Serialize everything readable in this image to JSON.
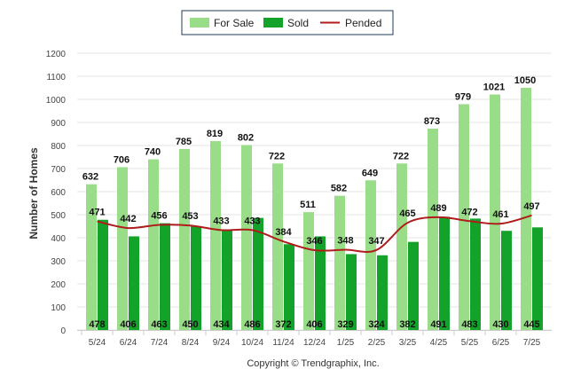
{
  "chart_data": {
    "type": "bar",
    "categories": [
      "5/24",
      "6/24",
      "7/24",
      "8/24",
      "9/24",
      "10/24",
      "11/24",
      "12/24",
      "1/25",
      "2/25",
      "3/25",
      "4/25",
      "5/25",
      "6/25",
      "7/25"
    ],
    "series": [
      {
        "name": "For Sale",
        "type": "bar",
        "color": "#99dd88",
        "values": [
          632,
          706,
          740,
          785,
          819,
          802,
          722,
          511,
          582,
          649,
          722,
          873,
          979,
          1021,
          1050
        ]
      },
      {
        "name": "Sold",
        "type": "bar",
        "color": "#14a32a",
        "values": [
          478,
          406,
          463,
          450,
          434,
          486,
          372,
          406,
          329,
          324,
          382,
          491,
          483,
          430,
          445
        ]
      },
      {
        "name": "Pended",
        "type": "line",
        "color": "#b01c1c",
        "values": [
          471,
          442,
          456,
          453,
          433,
          433,
          384,
          346,
          348,
          347,
          465,
          489,
          472,
          461,
          497
        ]
      }
    ],
    "ylabel": "Number of Homes",
    "ylim": [
      0,
      1200
    ],
    "yticks": [
      0,
      100,
      200,
      300,
      400,
      500,
      600,
      700,
      800,
      900,
      1000,
      1100,
      1200
    ],
    "grid": true,
    "legend_position": "top-center"
  },
  "legend": {
    "for_sale": "For Sale",
    "sold": "Sold",
    "pended": "Pended"
  },
  "footer": {
    "copyright": "Copyright © Trendgraphix, Inc."
  }
}
